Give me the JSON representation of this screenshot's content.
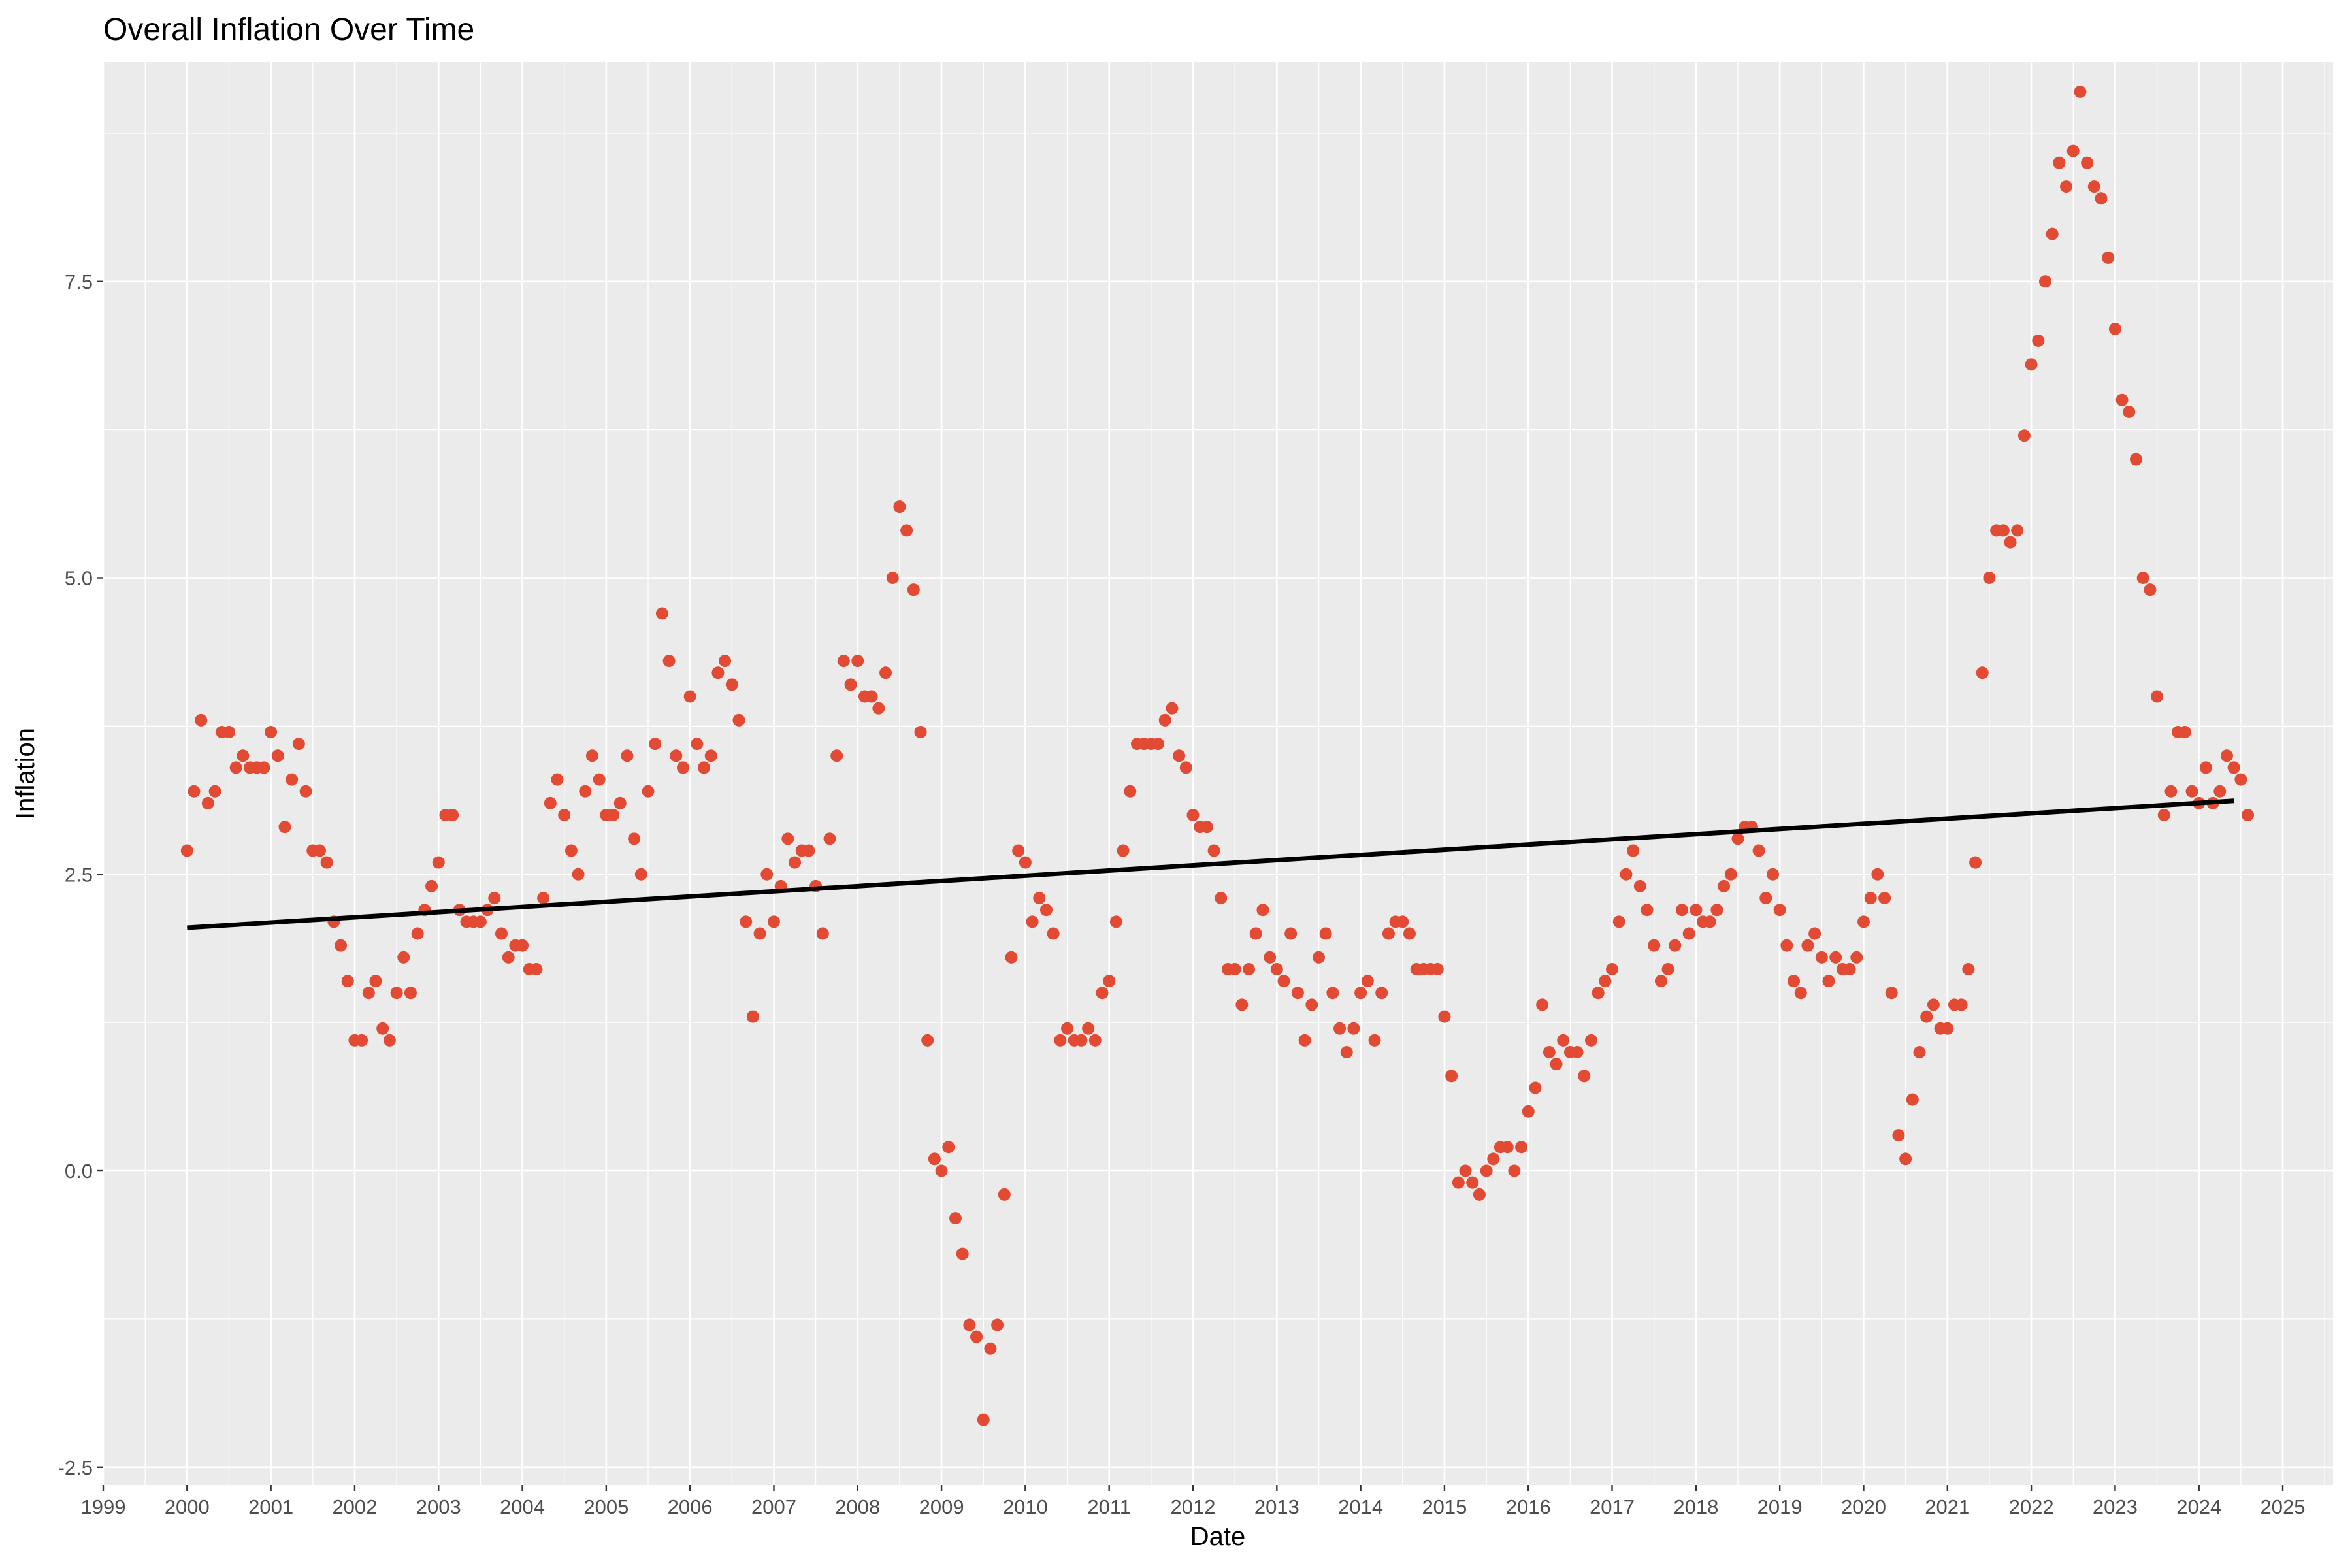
{
  "chart_data": {
    "type": "scatter",
    "title": "Overall Inflation Over Time",
    "xlabel": "Date",
    "ylabel": "Inflation",
    "x_unit": "year",
    "xlim": [
      1999.0,
      2025.6
    ],
    "ylim": [
      -2.65,
      9.35
    ],
    "x_ticks": [
      1999,
      2000,
      2001,
      2002,
      2003,
      2004,
      2005,
      2006,
      2007,
      2008,
      2009,
      2010,
      2011,
      2012,
      2013,
      2014,
      2015,
      2016,
      2017,
      2018,
      2019,
      2020,
      2021,
      2022,
      2023,
      2024,
      2025
    ],
    "y_ticks": [
      -2.5,
      0.0,
      2.5,
      5.0,
      7.5
    ],
    "y_tick_labels": [
      "-2.5",
      "0.0",
      "2.5",
      "5.0",
      "7.5"
    ],
    "grid": true,
    "panel_color": "#ebebeb",
    "grid_color": "#ffffff",
    "point_color": "#e34a33",
    "line_color": "#000000",
    "series": [
      {
        "type": "scatter",
        "start_year": 2000,
        "start_month": 1,
        "interval": "monthly",
        "values": [
          2.7,
          3.2,
          3.8,
          3.1,
          3.2,
          3.7,
          3.7,
          3.4,
          3.5,
          3.4,
          3.4,
          3.4,
          3.7,
          3.5,
          2.9,
          3.3,
          3.6,
          3.2,
          2.7,
          2.7,
          2.6,
          2.1,
          1.9,
          1.6,
          1.1,
          1.1,
          1.5,
          1.6,
          1.2,
          1.1,
          1.5,
          1.8,
          1.5,
          2.0,
          2.2,
          2.4,
          2.6,
          3.0,
          3.0,
          2.2,
          2.1,
          2.1,
          2.1,
          2.2,
          2.3,
          2.0,
          1.8,
          1.9,
          1.9,
          1.7,
          1.7,
          2.3,
          3.1,
          3.3,
          3.0,
          2.7,
          2.5,
          3.2,
          3.5,
          3.3,
          3.0,
          3.0,
          3.1,
          3.5,
          2.8,
          2.5,
          3.2,
          3.6,
          4.7,
          4.3,
          3.5,
          3.4,
          4.0,
          3.6,
          3.4,
          3.5,
          4.2,
          4.3,
          4.1,
          3.8,
          2.1,
          1.3,
          2.0,
          2.5,
          2.1,
          2.4,
          2.8,
          2.6,
          2.7,
          2.7,
          2.4,
          2.0,
          2.8,
          3.5,
          4.3,
          4.1,
          4.3,
          4.0,
          4.0,
          3.9,
          4.2,
          5.0,
          5.6,
          5.4,
          4.9,
          3.7,
          1.1,
          0.1,
          0.0,
          0.2,
          -0.4,
          -0.7,
          -1.3,
          -1.4,
          -2.1,
          -1.5,
          -1.3,
          -0.2,
          1.8,
          2.7,
          2.6,
          2.1,
          2.3,
          2.2,
          2.0,
          1.1,
          1.2,
          1.1,
          1.1,
          1.2,
          1.1,
          1.5,
          1.6,
          2.1,
          2.7,
          3.2,
          3.6,
          3.6,
          3.6,
          3.6,
          3.8,
          3.9,
          3.5,
          3.4,
          3.0,
          2.9,
          2.9,
          2.7,
          2.3,
          1.7,
          1.7,
          1.4,
          1.7,
          2.0,
          2.2,
          1.8,
          1.7,
          1.6,
          2.0,
          1.5,
          1.1,
          1.4,
          1.8,
          2.0,
          1.5,
          1.2,
          1.0,
          1.2,
          1.5,
          1.6,
          1.1,
          1.5,
          2.0,
          2.1,
          2.1,
          2.0,
          1.7,
          1.7,
          1.7,
          1.7,
          1.3,
          0.8,
          -0.1,
          0.0,
          -0.1,
          -0.2,
          0.0,
          0.1,
          0.2,
          0.2,
          0.0,
          0.2,
          0.5,
          0.7,
          1.4,
          1.0,
          0.9,
          1.1,
          1.0,
          1.0,
          0.8,
          1.1,
          1.5,
          1.6,
          1.7,
          2.1,
          2.5,
          2.7,
          2.4,
          2.2,
          1.9,
          1.6,
          1.7,
          1.9,
          2.2,
          2.0,
          2.2,
          2.1,
          2.1,
          2.2,
          2.4,
          2.5,
          2.8,
          2.9,
          2.9,
          2.7,
          2.3,
          2.5,
          2.2,
          1.9,
          1.6,
          1.5,
          1.9,
          2.0,
          1.8,
          1.6,
          1.8,
          1.7,
          1.7,
          1.8,
          2.1,
          2.3,
          2.5,
          2.3,
          1.5,
          0.3,
          0.1,
          0.6,
          1.0,
          1.3,
          1.4,
          1.2,
          1.2,
          1.4,
          1.4,
          1.7,
          2.6,
          4.2,
          5.0,
          5.4,
          5.4,
          5.3,
          5.4,
          6.2,
          6.8,
          7.0,
          7.5,
          7.9,
          8.5,
          8.3,
          8.6,
          9.1,
          8.5,
          8.3,
          8.2,
          7.7,
          7.1,
          6.5,
          6.4,
          6.0,
          5.0,
          4.9,
          4.0,
          3.0,
          3.2,
          3.7,
          3.7,
          3.2,
          3.1,
          3.4,
          3.1,
          3.2,
          3.5,
          3.4,
          3.3,
          3.0
        ]
      },
      {
        "type": "line",
        "role": "trend",
        "x": [
          2000.0,
          2024.417
        ],
        "values": [
          2.05,
          3.12
        ]
      }
    ]
  }
}
